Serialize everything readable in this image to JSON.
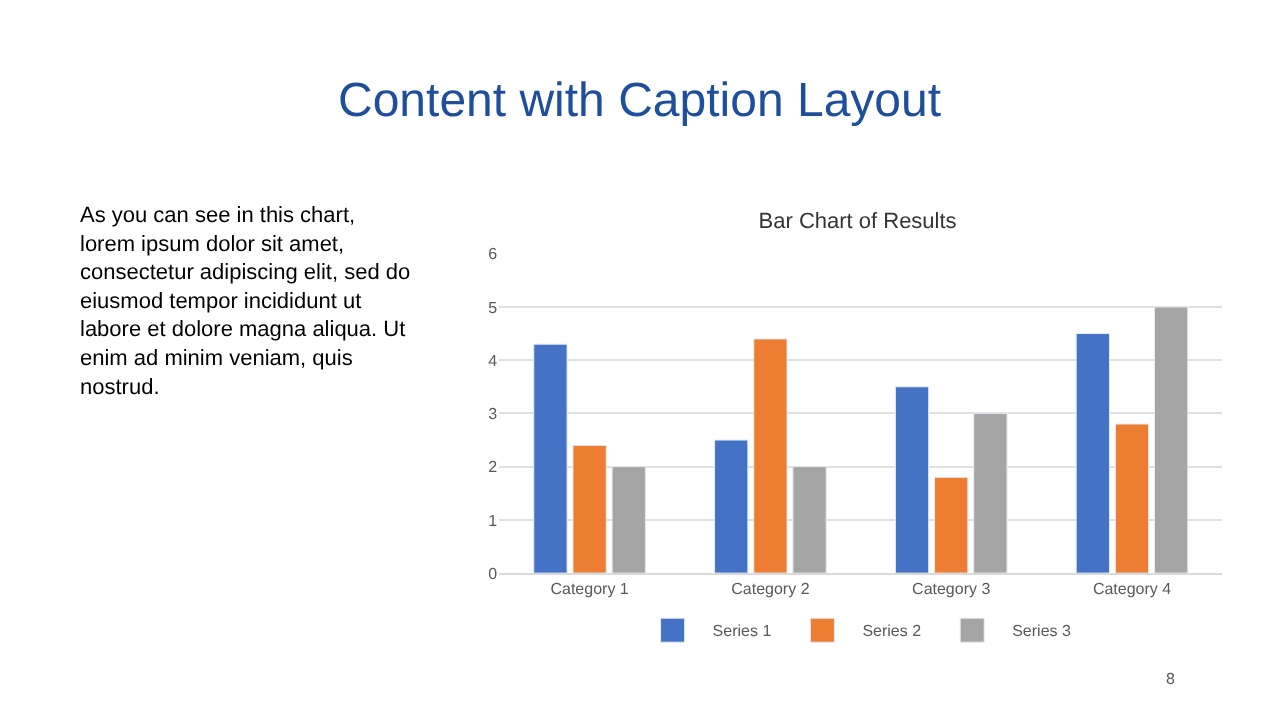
{
  "chart_data": {
    "type": "bar",
    "title": "Bar Chart of Results",
    "categories": [
      "Category 1",
      "Category 2",
      "Category 3",
      "Category 4"
    ],
    "series": [
      {
        "name": "Series 1",
        "color": "#4472c4",
        "values": [
          4.3,
          2.5,
          3.5,
          4.5
        ]
      },
      {
        "name": "Series 2",
        "color": "#ed7d31",
        "values": [
          2.4,
          4.4,
          1.8,
          2.8
        ]
      },
      {
        "name": "Series 3",
        "color": "#a5a5a5",
        "values": [
          2,
          2,
          3,
          5
        ]
      }
    ],
    "ylim": [
      0,
      6
    ],
    "yticks": [
      0,
      1,
      2,
      3,
      4,
      5,
      6
    ],
    "grid": "y",
    "legend": "bottom",
    "annotations": [
      "Content with Caption Layout",
      "As you can see in this chart,\nlorem ipsum dolor sit amet,\nconsectetur adipiscing elit, sed do\neiusmod tempor incididunt ut\nlabore et dolore magna aliqua. Ut\nenim ad minim veniam, quis\nnostrud.",
      "8"
    ]
  }
}
